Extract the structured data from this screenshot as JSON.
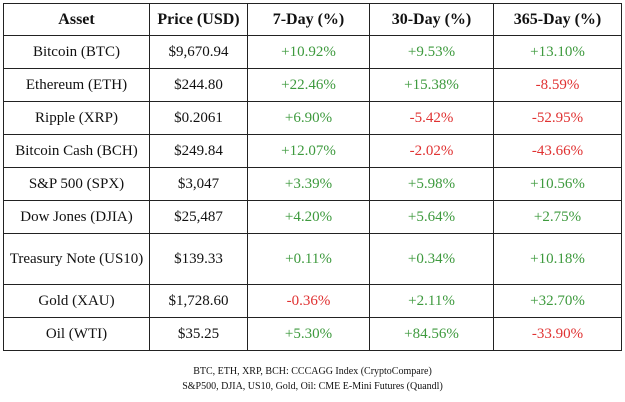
{
  "table": {
    "headers": [
      "Asset",
      "Price (USD)",
      "7-Day (%)",
      "30-Day (%)",
      "365-Day (%)"
    ],
    "rows": [
      {
        "asset": "Bitcoin (BTC)",
        "price": "$9,670.94",
        "d7": "+10.92%",
        "d30": "+9.53%",
        "d365": "+13.10%"
      },
      {
        "asset": "Ethereum (ETH)",
        "price": "$244.80",
        "d7": "+22.46%",
        "d30": "+15.38%",
        "d365": "-8.59%"
      },
      {
        "asset": "Ripple (XRP)",
        "price": "$0.2061",
        "d7": "+6.90%",
        "d30": "-5.42%",
        "d365": "-52.95%"
      },
      {
        "asset": "Bitcoin Cash (BCH)",
        "price": "$249.84",
        "d7": "+12.07%",
        "d30": "-2.02%",
        "d365": "-43.66%"
      },
      {
        "asset": "S&P 500 (SPX)",
        "price": "$3,047",
        "d7": "+3.39%",
        "d30": "+5.98%",
        "d365": "+10.56%"
      },
      {
        "asset": "Dow Jones (DJIA)",
        "price": "$25,487",
        "d7": "+4.20%",
        "d30": "+5.64%",
        "d365": "+2.75%"
      },
      {
        "asset": "Treasury Note (US10)",
        "price": "$139.33",
        "d7": "+0.11%",
        "d30": "+0.34%",
        "d365": "+10.18%"
      },
      {
        "asset": "Gold (XAU)",
        "price": "$1,728.60",
        "d7": "-0.36%",
        "d30": "+2.11%",
        "d365": "+32.70%"
      },
      {
        "asset": "Oil (WTI)",
        "price": "$35.25",
        "d7": "+5.30%",
        "d30": "+84.56%",
        "d365": "-33.90%"
      }
    ]
  },
  "sources": {
    "line1": "BTC, ETH, XRP, BCH: CCCAGG  Index (CryptoCompare)",
    "line2": "S&P500, DJIA, US10, Gold, Oil: CME E-Mini Futures (Quandl)"
  },
  "colors": {
    "positive": "#3e9a3e",
    "negative": "#e03232",
    "border": "#222222"
  }
}
